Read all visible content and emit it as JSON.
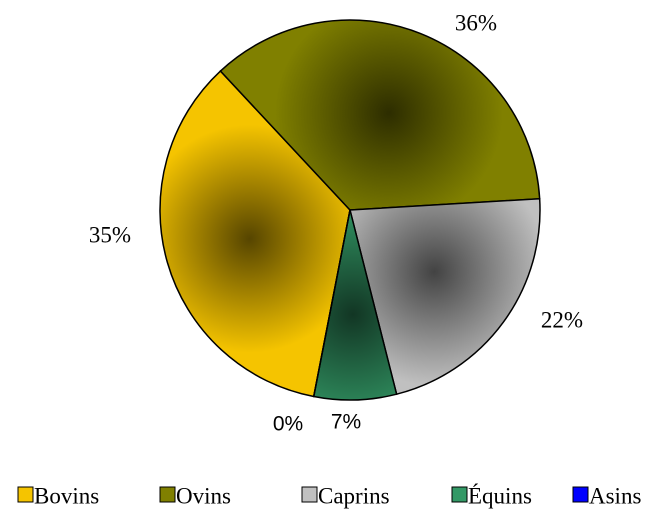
{
  "chart_data": {
    "type": "pie",
    "categories": [
      "Bovins",
      "Ovins",
      "Caprins",
      "Équins",
      "Asins"
    ],
    "values": [
      35,
      36,
      22,
      7,
      0
    ],
    "value_labels": [
      "35%",
      "36%",
      "22%",
      "7%",
      "0%"
    ],
    "colors": [
      "#f5c400",
      "#808000",
      "#c0c0c0",
      "#339966",
      "#0000ff"
    ],
    "legend": "bottom"
  }
}
